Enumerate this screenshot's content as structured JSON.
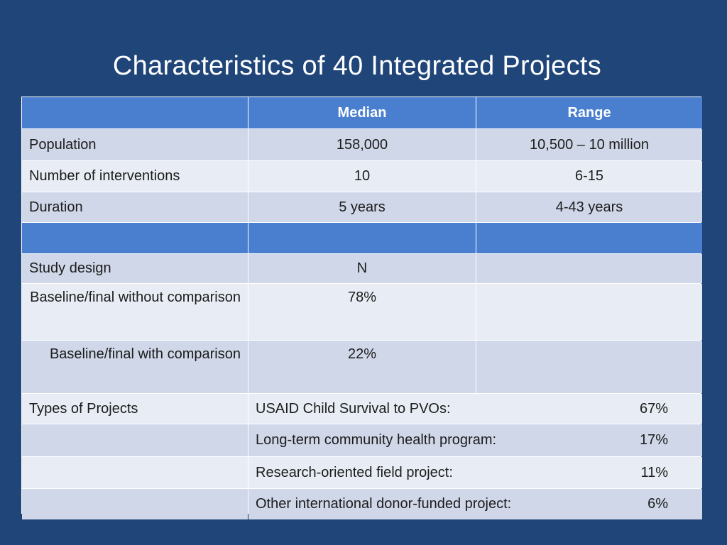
{
  "slide": {
    "title": "Characteristics of 40 Integrated Projects"
  },
  "table": {
    "headers": [
      "",
      "Median",
      "Range"
    ],
    "summary_rows": [
      {
        "label": "Population",
        "median": "158,000",
        "range": "10,500 – 10 million"
      },
      {
        "label": "Number of interventions",
        "median": "10",
        "range": "6-15"
      },
      {
        "label": "Duration",
        "median": "5 years",
        "range": "4-43 years"
      }
    ],
    "study_design": {
      "label": "Study design",
      "value": "N",
      "rows": [
        {
          "label": "Baseline/final without comparison",
          "value": "78%"
        },
        {
          "label": "Baseline/final with comparison",
          "value": "22%"
        }
      ]
    },
    "project_types": {
      "label": "Types of Projects",
      "rows": [
        {
          "name": "USAID Child Survival to PVOs:",
          "percent": "67%"
        },
        {
          "name": "Long-term community health program:",
          "percent": "17%"
        },
        {
          "name": "Research-oriented field project:",
          "percent": "11%"
        },
        {
          "name": "Other international donor-funded project:",
          "percent": "6%"
        }
      ]
    }
  }
}
